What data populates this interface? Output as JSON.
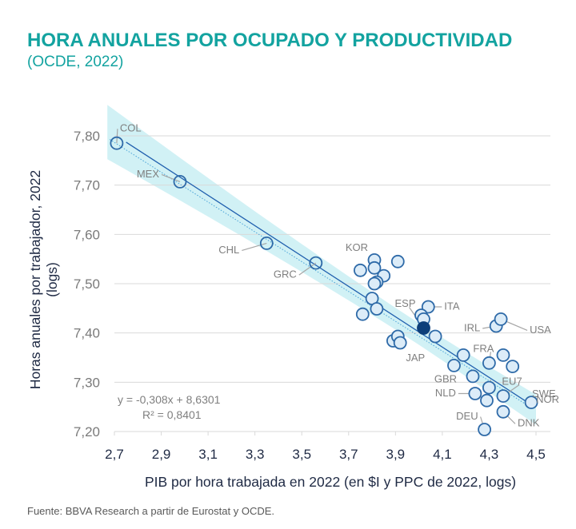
{
  "header": {
    "title": "HORA ANUALES POR OCUPADO Y PRODUCTIVIDAD",
    "subtitle": "(OCDE, 2022)"
  },
  "footer": {
    "source": "Fuente: BBVA Research a partir de Eurostat y OCDE."
  },
  "colors": {
    "title": "#13a3a0",
    "marker_stroke": "#2e6aa8",
    "marker_fill": "#dcecf8",
    "highlight_fill": "#0d3f7a",
    "band": "#c9eef3",
    "trend": "#1f5fae",
    "grid": "#d9d9d9",
    "label": "#7f7f7f"
  },
  "chart_data": {
    "type": "scatter",
    "title": "HORA ANUALES POR OCUPADO Y PRODUCTIVIDAD",
    "subtitle": "(OCDE, 2022)",
    "xlabel": "PIB por hora trabajada en 2022 (en $I y PPC de 2022, logs)",
    "ylabel": "Horas anuales por trabajador, 2022 (logs)",
    "ylabel_lines": [
      "Horas anuales por trabajador, 2022",
      "(logs)"
    ],
    "xlim": [
      2.7,
      4.5
    ],
    "ylim": [
      7.2,
      7.8
    ],
    "xticks": [
      2.7,
      2.9,
      3.1,
      3.3,
      3.5,
      3.7,
      3.9,
      4.1,
      4.3,
      4.5
    ],
    "xtick_labels": [
      "2,7",
      "2,9",
      "3,1",
      "3,3",
      "3,5",
      "3,7",
      "3,9",
      "4,1",
      "4,3",
      "4,5"
    ],
    "yticks": [
      7.2,
      7.3,
      7.4,
      7.5,
      7.6,
      7.7,
      7.8
    ],
    "ytick_labels": [
      "7,20",
      "7,30",
      "7,40",
      "7,50",
      "7,60",
      "7,70",
      "7,80"
    ],
    "grid": "horizontal",
    "trendline": {
      "slope": -0.308,
      "intercept": 8.6301,
      "r2": 0.8401,
      "equation_text": "y = -0,308x + 8,6301",
      "r2_text": "R² = 0,8401",
      "confidence_band": true
    },
    "points": [
      {
        "label": "COL",
        "x": 2.71,
        "y": 7.785
      },
      {
        "label": "MEX",
        "x": 2.98,
        "y": 7.707
      },
      {
        "label": "CHL",
        "x": 3.35,
        "y": 7.582
      },
      {
        "label": "GRC",
        "x": 3.56,
        "y": 7.542
      },
      {
        "label": "KOR",
        "x": 3.81,
        "y": 7.548
      },
      {
        "label": "",
        "x": 3.91,
        "y": 7.545
      },
      {
        "label": "",
        "x": 3.75,
        "y": 7.527
      },
      {
        "label": "",
        "x": 3.81,
        "y": 7.532
      },
      {
        "label": "",
        "x": 3.85,
        "y": 7.516
      },
      {
        "label": "",
        "x": 3.82,
        "y": 7.503
      },
      {
        "label": "",
        "x": 3.81,
        "y": 7.5
      },
      {
        "label": "",
        "x": 3.8,
        "y": 7.47
      },
      {
        "label": "",
        "x": 3.82,
        "y": 7.449
      },
      {
        "label": "",
        "x": 3.76,
        "y": 7.438
      },
      {
        "label": "ITA",
        "x": 4.04,
        "y": 7.453
      },
      {
        "label": "",
        "x": 4.01,
        "y": 7.436
      },
      {
        "label": "",
        "x": 4.02,
        "y": 7.428
      },
      {
        "label": "",
        "x": 4.07,
        "y": 7.393
      },
      {
        "label": "JAP",
        "x": 3.89,
        "y": 7.384
      },
      {
        "label": "",
        "x": 3.91,
        "y": 7.393
      },
      {
        "label": "",
        "x": 3.92,
        "y": 7.38
      },
      {
        "label": "IRL",
        "x": 4.33,
        "y": 7.414
      },
      {
        "label": "USA",
        "x": 4.35,
        "y": 7.428
      },
      {
        "label": "",
        "x": 4.19,
        "y": 7.355
      },
      {
        "label": "FRA",
        "x": 4.3,
        "y": 7.339
      },
      {
        "label": "",
        "x": 4.15,
        "y": 7.334
      },
      {
        "label": "",
        "x": 4.36,
        "y": 7.355
      },
      {
        "label": "",
        "x": 4.4,
        "y": 7.332
      },
      {
        "label": "GBR",
        "x": 4.23,
        "y": 7.312
      },
      {
        "label": "EU7",
        "x": 4.3,
        "y": 7.289
      },
      {
        "label": "NLD",
        "x": 4.24,
        "y": 7.277
      },
      {
        "label": "",
        "x": 4.29,
        "y": 7.263
      },
      {
        "label": "SWE",
        "x": 4.36,
        "y": 7.272
      },
      {
        "label": "NOR",
        "x": 4.48,
        "y": 7.259
      },
      {
        "label": "DNK",
        "x": 4.36,
        "y": 7.24
      },
      {
        "label": "DEU",
        "x": 4.28,
        "y": 7.204
      },
      {
        "label": "ESP",
        "x": 4.02,
        "y": 7.41,
        "highlight": true
      }
    ]
  }
}
